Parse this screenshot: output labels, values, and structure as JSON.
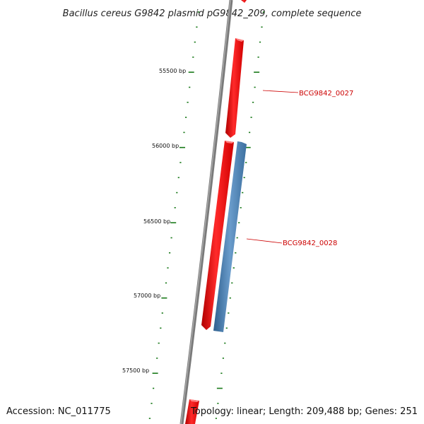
{
  "title": "Bacillus cereus G9842 plasmid pG9842_209, complete sequence",
  "footer": {
    "accession": "Accession: NC_011775",
    "summary": "Topology: linear; Length: 209,488 bp; Genes: 251"
  },
  "bp_labels": [
    "55500 bp",
    "56000 bp",
    "56500 bp",
    "57000 bp",
    "57500 bp"
  ],
  "genes": [
    {
      "label": "BCG9842_0027",
      "strand": "forward",
      "color": "#ff0000"
    },
    {
      "label": "BCG9842_0028",
      "strand": "reverse",
      "color": "#4a80b4"
    }
  ],
  "colors": {
    "backbone": "#808080",
    "tick": "#1a7a1a",
    "forward_gene": "#ff0000",
    "reverse_gene": "#4a80b4",
    "label": "#cc0000"
  }
}
